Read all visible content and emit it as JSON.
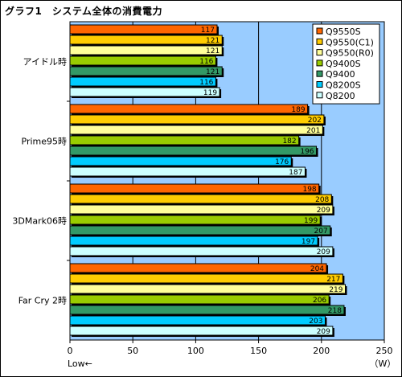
{
  "title": "グラフ1　システム全体の消費電力",
  "chart_data": {
    "type": "bar",
    "orientation": "horizontal",
    "title": "グラフ1　システム全体の消費電力",
    "categories": [
      "アイドル時",
      "Prime95時",
      "3DMark06時",
      "Far Cry 2時"
    ],
    "series": [
      {
        "name": "Q9550S",
        "color": "#ff6600",
        "values": [
          117,
          189,
          198,
          204
        ]
      },
      {
        "name": "Q9550(C1)",
        "color": "#ffcc00",
        "values": [
          121,
          202,
          208,
          217
        ]
      },
      {
        "name": "Q9550(R0)",
        "color": "#ffff99",
        "values": [
          121,
          201,
          209,
          219
        ]
      },
      {
        "name": "Q9400S",
        "color": "#99cc00",
        "values": [
          116,
          182,
          199,
          206
        ]
      },
      {
        "name": "Q9400",
        "color": "#339966",
        "values": [
          121,
          196,
          207,
          218
        ]
      },
      {
        "name": "Q8200S",
        "color": "#00ccff",
        "values": [
          116,
          176,
          197,
          203
        ]
      },
      {
        "name": "Q8200",
        "color": "#ccffff",
        "values": [
          119,
          187,
          209,
          209
        ]
      }
    ],
    "xlim": [
      0,
      250
    ],
    "xticks": [
      0,
      50,
      100,
      150,
      200,
      250
    ],
    "unit_label": "（W）",
    "low_label": "Low←",
    "grid": true,
    "legend_position": "top-right",
    "plot_background": "#99ccff"
  }
}
